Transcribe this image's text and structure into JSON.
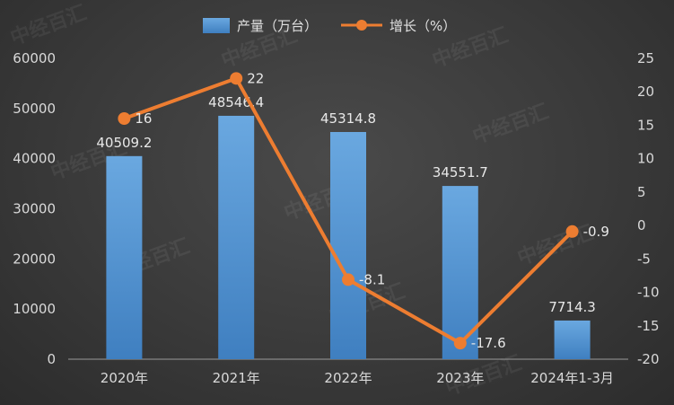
{
  "legend": {
    "bar_label": "产量（万台）",
    "line_label": "增长（%）"
  },
  "colors": {
    "bar": "#5b9bd5",
    "line": "#ed7d31"
  },
  "watermark": "中经百汇",
  "chart_data": {
    "type": "bar+line",
    "categories": [
      "2020年",
      "2021年",
      "2022年",
      "2023年",
      "2024年1-3月"
    ],
    "series": [
      {
        "name": "产量（万台）",
        "type": "bar",
        "axis": "left",
        "values": [
          40509.2,
          48546.4,
          45314.8,
          34551.7,
          7714.3
        ]
      },
      {
        "name": "增长（%）",
        "type": "line",
        "axis": "right",
        "values": [
          16,
          22,
          -8.1,
          -17.6,
          -0.9
        ]
      }
    ],
    "left_axis": {
      "min": 0,
      "max": 60000,
      "ticks": [
        0,
        10000,
        20000,
        30000,
        40000,
        50000,
        60000
      ]
    },
    "right_axis": {
      "min": -20,
      "max": 25,
      "ticks": [
        -20,
        -15,
        -10,
        -5,
        0,
        5,
        10,
        15,
        20,
        25
      ]
    },
    "legend_position": "top-center",
    "grid": false
  }
}
